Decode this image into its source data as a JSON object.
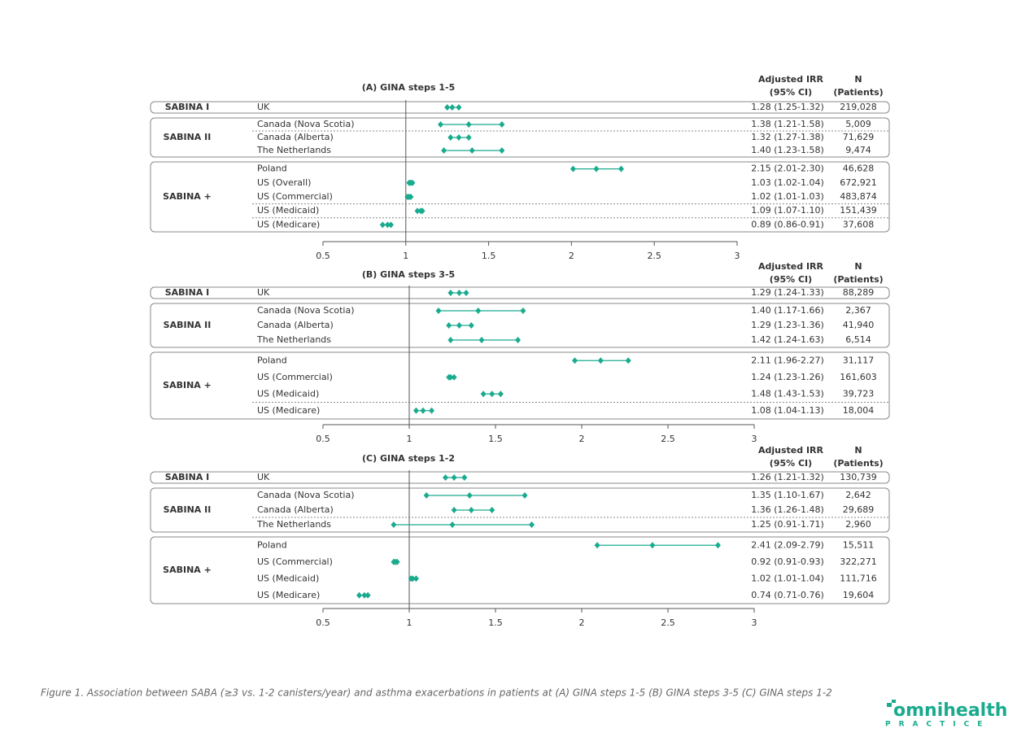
{
  "chart_data": [
    {
      "type": "forest",
      "title": "(A) GINA steps 1-5",
      "irr_header": [
        "Adjusted IRR",
        "(95% CI)"
      ],
      "n_header": [
        "N",
        "(Patients)"
      ],
      "color": "#1aab8f",
      "reference": 1,
      "xlim": [
        0.5,
        3
      ],
      "xticks": [
        0.5,
        1,
        1.5,
        2,
        2.5,
        3
      ],
      "groups": [
        {
          "name": "SABINA I",
          "rows": [
            {
              "label": "UK",
              "estimate": 1.28,
              "ci": [
                1.25,
                1.32
              ],
              "value_label": "1.28 (1.25-1.32)",
              "n": "219,028"
            }
          ]
        },
        {
          "name": "SABINA II",
          "rows": [
            {
              "label": "Canada (Nova Scotia)",
              "estimate": 1.38,
              "ci": [
                1.21,
                1.58
              ],
              "value_label": "1.38 (1.21-1.58)",
              "n": "5,009"
            },
            {
              "label": "Canada (Alberta)",
              "estimate": 1.32,
              "ci": [
                1.27,
                1.38
              ],
              "value_label": "1.32 (1.27-1.38)",
              "n": "71,629",
              "divider": true
            },
            {
              "label": "The Netherlands",
              "estimate": 1.4,
              "ci": [
                1.23,
                1.58
              ],
              "value_label": "1.40 (1.23-1.58)",
              "n": "9,474"
            }
          ]
        },
        {
          "name": "SABINA +",
          "rows": [
            {
              "label": "Poland",
              "estimate": 2.15,
              "ci": [
                2.01,
                2.3
              ],
              "value_label": "2.15 (2.01-2.30)",
              "n": "46,628"
            },
            {
              "label": "US (Overall)",
              "estimate": 1.03,
              "ci": [
                1.02,
                1.04
              ],
              "value_label": "1.03 (1.02-1.04)",
              "n": "672,921"
            },
            {
              "label": "US (Commercial)",
              "estimate": 1.02,
              "ci": [
                1.01,
                1.03
              ],
              "value_label": "1.02 (1.01-1.03)",
              "n": "483,874"
            },
            {
              "label": "US (Medicaid)",
              "estimate": 1.09,
              "ci": [
                1.07,
                1.1
              ],
              "value_label": "1.09 (1.07-1.10)",
              "n": "151,439",
              "divider": true
            },
            {
              "label": "US (Medicare)",
              "estimate": 0.89,
              "ci": [
                0.86,
                0.91
              ],
              "value_label": "0.89 (0.86-0.91)",
              "n": "37,608",
              "divider": true
            }
          ]
        }
      ]
    },
    {
      "type": "forest",
      "title": "(B) GINA steps 3-5",
      "irr_header": [
        "Adjusted IRR",
        "(95% CI)"
      ],
      "n_header": [
        "N",
        "(Patients)"
      ],
      "color": "#1aab8f",
      "reference": 1,
      "xlim": [
        0.5,
        3
      ],
      "xticks": [
        0.5,
        1,
        1.5,
        2,
        2.5,
        3
      ],
      "groups": [
        {
          "name": "SABINA I",
          "rows": [
            {
              "label": "UK",
              "estimate": 1.29,
              "ci": [
                1.24,
                1.33
              ],
              "value_label": "1.29 (1.24-1.33)",
              "n": "88,289"
            }
          ]
        },
        {
          "name": "SABINA II",
          "rows": [
            {
              "label": "Canada (Nova Scotia)",
              "estimate": 1.4,
              "ci": [
                1.17,
                1.66
              ],
              "value_label": "1.40 (1.17-1.66)",
              "n": "2,367"
            },
            {
              "label": "Canada (Alberta)",
              "estimate": 1.29,
              "ci": [
                1.23,
                1.36
              ],
              "value_label": "1.29 (1.23-1.36)",
              "n": "41,940"
            },
            {
              "label": "The Netherlands",
              "estimate": 1.42,
              "ci": [
                1.24,
                1.63
              ],
              "value_label": "1.42 (1.24-1.63)",
              "n": "6,514"
            }
          ]
        },
        {
          "name": "SABINA +",
          "rows": [
            {
              "label": "Poland",
              "estimate": 2.11,
              "ci": [
                1.96,
                2.27
              ],
              "value_label": "2.11 (1.96-2.27)",
              "n": "31,117"
            },
            {
              "label": "US (Commercial)",
              "estimate": 1.24,
              "ci": [
                1.23,
                1.26
              ],
              "value_label": "1.24 (1.23-1.26)",
              "n": "161,603"
            },
            {
              "label": "US (Medicaid)",
              "estimate": 1.48,
              "ci": [
                1.43,
                1.53
              ],
              "value_label": "1.48 (1.43-1.53)",
              "n": "39,723"
            },
            {
              "label": "US (Medicare)",
              "estimate": 1.08,
              "ci": [
                1.04,
                1.13
              ],
              "value_label": "1.08 (1.04-1.13)",
              "n": "18,004",
              "divider": true
            }
          ]
        }
      ]
    },
    {
      "type": "forest",
      "title": "(C) GINA steps 1-2",
      "irr_header": [
        "Adjusted IRR",
        "(95% CI)"
      ],
      "n_header": [
        "N",
        "(Patients)"
      ],
      "color": "#1aab8f",
      "reference": 1,
      "xlim": [
        0.5,
        3
      ],
      "xticks": [
        0.5,
        1,
        1.5,
        2,
        2.5,
        3
      ],
      "groups": [
        {
          "name": "SABINA I",
          "rows": [
            {
              "label": "UK",
              "estimate": 1.26,
              "ci": [
                1.21,
                1.32
              ],
              "value_label": "1.26 (1.21-1.32)",
              "n": "130,739"
            }
          ]
        },
        {
          "name": "SABINA II",
          "rows": [
            {
              "label": "Canada (Nova Scotia)",
              "estimate": 1.35,
              "ci": [
                1.1,
                1.67
              ],
              "value_label": "1.35 (1.10-1.67)",
              "n": "2,642"
            },
            {
              "label": "Canada (Alberta)",
              "estimate": 1.36,
              "ci": [
                1.26,
                1.48
              ],
              "value_label": "1.36 (1.26-1.48)",
              "n": "29,689"
            },
            {
              "label": "The Netherlands",
              "estimate": 1.25,
              "ci": [
                0.91,
                1.71
              ],
              "value_label": "1.25 (0.91-1.71)",
              "n": "2,960",
              "divider": true
            }
          ]
        },
        {
          "name": "SABINA +",
          "rows": [
            {
              "label": "Poland",
              "estimate": 2.41,
              "ci": [
                2.09,
                2.79
              ],
              "value_label": "2.41 (2.09-2.79)",
              "n": "15,511"
            },
            {
              "label": "US (Commercial)",
              "estimate": 0.92,
              "ci": [
                0.91,
                0.93
              ],
              "value_label": "0.92 (0.91-0.93)",
              "n": "322,271"
            },
            {
              "label": "US (Medicaid)",
              "estimate": 1.02,
              "ci": [
                1.01,
                1.04
              ],
              "value_label": "1.02 (1.01-1.04)",
              "n": "111,716"
            },
            {
              "label": "US (Medicare)",
              "estimate": 0.74,
              "ci": [
                0.71,
                0.76
              ],
              "value_label": "0.74 (0.71-0.76)",
              "n": "19,604"
            }
          ]
        }
      ]
    }
  ],
  "caption": "Figure 1. Association between SABA (≥3 vs. 1-2 canisters/year) and asthma exacerbations in patients at (A) GINA steps 1-5 (B) GINA steps 3-5 (C) GINA steps 1-2",
  "logo": {
    "name": "omnihealth",
    "tagline": "PRACTICE"
  }
}
